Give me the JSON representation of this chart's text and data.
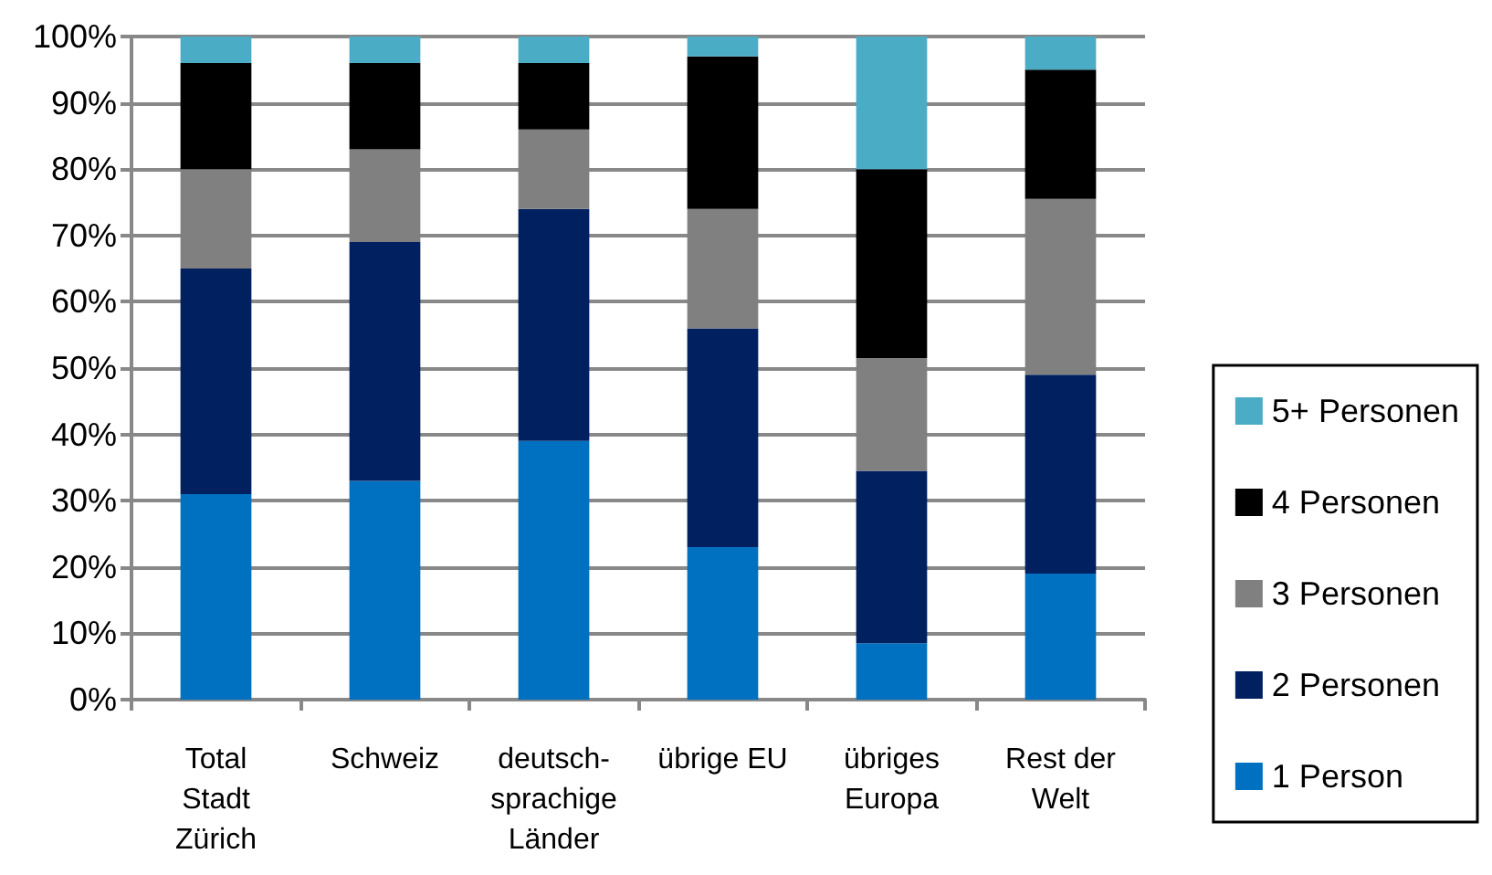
{
  "chart_data": {
    "type": "bar",
    "stacked": true,
    "categories": [
      "Total Stadt Zürich",
      "Schweiz",
      "deutsch-sprachige Länder",
      "übrige EU",
      "übriges Europa",
      "Rest der Welt"
    ],
    "series": [
      {
        "name": "1 Person",
        "color": "#0070c0",
        "values": [
          31,
          33,
          39,
          23,
          8.5,
          19
        ]
      },
      {
        "name": "2 Personen",
        "color": "#002060",
        "values": [
          34,
          36,
          35,
          33,
          26,
          30
        ]
      },
      {
        "name": "3 Personen",
        "color": "#808080",
        "values": [
          15,
          14,
          12,
          18,
          17,
          26.5
        ]
      },
      {
        "name": "4 Personen",
        "color": "#000000",
        "values": [
          16,
          13,
          10,
          23,
          28.5,
          19.5
        ]
      },
      {
        "name": "5+ Personen",
        "color": "#4bacc6",
        "values": [
          4,
          4,
          4,
          3,
          20,
          5
        ]
      }
    ],
    "ylim": [
      0,
      100
    ],
    "yticks": [
      {
        "value": 0,
        "label": "0%"
      },
      {
        "value": 10,
        "label": "10%"
      },
      {
        "value": 20,
        "label": "20%"
      },
      {
        "value": 30,
        "label": "30%"
      },
      {
        "value": 40,
        "label": "40%"
      },
      {
        "value": 50,
        "label": "50%"
      },
      {
        "value": 60,
        "label": "60%"
      },
      {
        "value": 70,
        "label": "70%"
      },
      {
        "value": 80,
        "label": "80%"
      },
      {
        "value": 90,
        "label": "90%"
      },
      {
        "value": 100,
        "label": "100%"
      }
    ],
    "grid": "y",
    "legend": "right"
  }
}
